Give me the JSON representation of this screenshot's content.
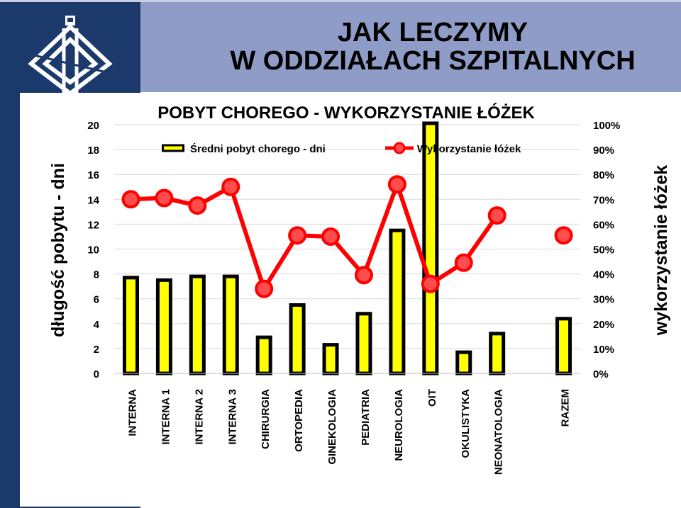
{
  "slide": {
    "title_line1": "JAK LECZYMY",
    "title_line2": "W ODDZIAŁACH SZPITALNYCH"
  },
  "logo": {
    "icon": "hospital-emblem-icon"
  },
  "colors": {
    "left_band": "#1b3a6b",
    "header_band": "#8f9cc8",
    "bar_fill": "#ffff00",
    "bar_stroke": "#000000",
    "line": "#ff0000",
    "marker_fill": "#ff4d4d"
  },
  "chart_data": {
    "type": "bar",
    "title": "POBYT CHOREGO - WYKORZYSTANIE ŁÓŻEK",
    "ylabel": "długość pobytu - dni",
    "y2label": "wykorzystanie łóżek",
    "ylim": [
      0,
      20
    ],
    "y_ticks": [
      "0",
      "2",
      "4",
      "6",
      "8",
      "10",
      "12",
      "14",
      "16",
      "18",
      "20"
    ],
    "y2lim": [
      0,
      100
    ],
    "y2_ticks": [
      "0%",
      "10%",
      "20%",
      "30%",
      "40%",
      "50%",
      "60%",
      "70%",
      "80%",
      "90%",
      "100%"
    ],
    "grid": true,
    "legend_position": "top",
    "categories": [
      "INTERNA",
      "INTERNA 1",
      "INTERNA 2",
      "INTERNA 3",
      "CHIRURGIA",
      "ORTOPEDIA",
      "GINEKOLOGIA",
      "PEDIATRIA",
      "NEUROLOGIA",
      "OIT",
      "OKULISTYKA",
      "NEONATOLOGIA",
      "",
      "RAZEM"
    ],
    "series": [
      {
        "name": "Średni pobyt chorego - dni",
        "type": "bar",
        "axis": "left",
        "values": [
          7.7,
          7.5,
          7.8,
          7.8,
          2.9,
          5.5,
          2.3,
          4.8,
          11.5,
          20.5,
          1.7,
          3.2,
          null,
          4.4
        ]
      },
      {
        "name": "Wykorzystanie łóżek",
        "type": "line",
        "axis": "right",
        "values": [
          70,
          70.5,
          67.5,
          75,
          34,
          55.5,
          55,
          39.5,
          76,
          36,
          44.5,
          63.5,
          null,
          55.5
        ]
      }
    ]
  }
}
